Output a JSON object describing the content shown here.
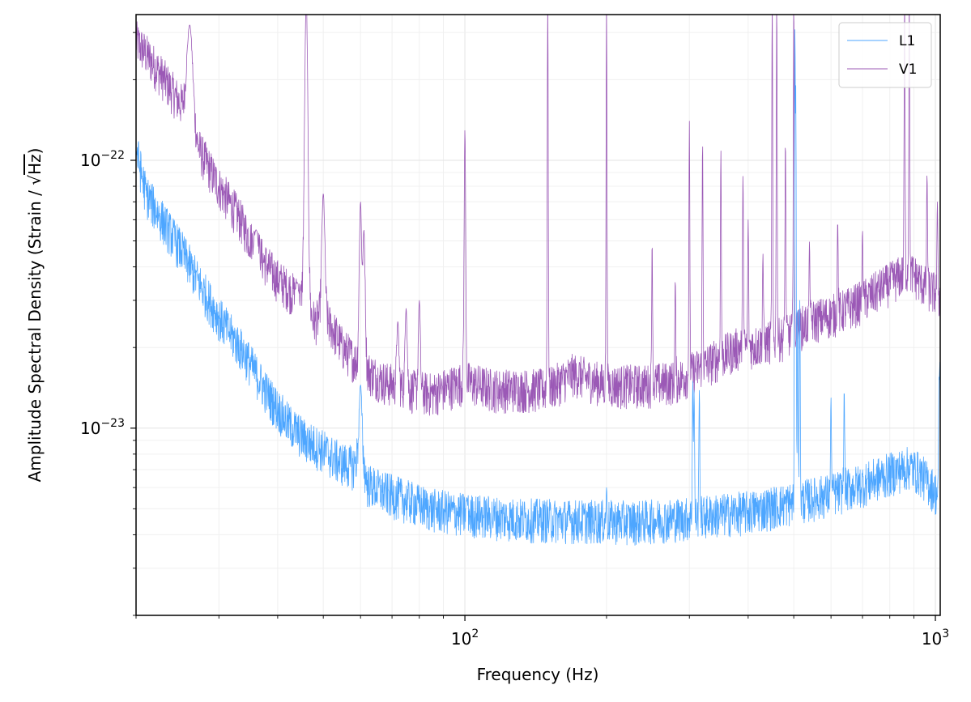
{
  "chart_data": {
    "type": "line",
    "xlabel": "Frequency (Hz)",
    "ylabel_prefix": "Amplitude Spectral Density (Strain / ",
    "ylabel_sqrt": "Hz",
    "ylabel_suffix": ")",
    "xscale": "log",
    "yscale": "log",
    "xlim": [
      20,
      1024
    ],
    "ylim": [
      2e-24,
      3.5e-22
    ],
    "grid": true,
    "legend_position": "top-right",
    "x_major_ticks": [
      {
        "value": 100,
        "base": "10",
        "exp": "2"
      },
      {
        "value": 1000,
        "base": "10",
        "exp": "3"
      }
    ],
    "y_major_ticks": [
      {
        "value": 1e-23,
        "base": "10",
        "exp": "−23"
      },
      {
        "value": 1e-22,
        "base": "10",
        "exp": "−22"
      }
    ],
    "series": [
      {
        "name": "L1",
        "color": "#4da6ff",
        "baseline": [
          [
            20,
            1.1e-22
          ],
          [
            21,
            7.5e-23
          ],
          [
            23,
            5.8e-23
          ],
          [
            25,
            4.6e-23
          ],
          [
            28,
            3.2e-23
          ],
          [
            30,
            2.6e-23
          ],
          [
            34,
            1.9e-23
          ],
          [
            38,
            1.35e-23
          ],
          [
            42,
            1.05e-23
          ],
          [
            46,
            9e-24
          ],
          [
            50,
            8.3e-24
          ],
          [
            54,
            7.5e-24
          ],
          [
            58,
            7.2e-24
          ],
          [
            60,
            8.5e-24
          ],
          [
            62,
            6.2e-24
          ],
          [
            67,
            5.8e-24
          ],
          [
            75,
            5.4e-24
          ],
          [
            85,
            5e-24
          ],
          [
            100,
            4.8e-24
          ],
          [
            130,
            4.6e-24
          ],
          [
            170,
            4.55e-24
          ],
          [
            230,
            4.5e-24
          ],
          [
            300,
            4.65e-24
          ],
          [
            400,
            4.9e-24
          ],
          [
            500,
            5.3e-24
          ],
          [
            600,
            5.7e-24
          ],
          [
            700,
            6.2e-24
          ],
          [
            800,
            6.8e-24
          ],
          [
            880,
            7.2e-24
          ],
          [
            930,
            6.8e-24
          ],
          [
            1000,
            5.8e-24
          ],
          [
            1024,
            5.4e-24
          ]
        ],
        "peaks": [
          [
            60,
            1.45e-23
          ],
          [
            101,
            5.5e-24
          ],
          [
            200,
            6e-24
          ],
          [
            305,
            1.5e-23
          ],
          [
            307,
            1.4e-23
          ],
          [
            315,
            1.4e-23
          ],
          [
            503,
            3.5e-22
          ],
          [
            505,
            1.9e-22
          ],
          [
            510,
            3e-23
          ],
          [
            515,
            3e-23
          ],
          [
            600,
            1.3e-23
          ],
          [
            640,
            1.4e-23
          ],
          [
            1018,
            1.5e-23
          ],
          [
            1022,
            1.8e-23
          ]
        ]
      },
      {
        "name": "V1",
        "color": "#9b59b6",
        "baseline": [
          [
            20,
            2.8e-22
          ],
          [
            21,
            2.5e-22
          ],
          [
            23,
            2e-22
          ],
          [
            25,
            1.6e-22
          ],
          [
            26,
            1.3e-22
          ],
          [
            28,
            1e-22
          ],
          [
            30,
            8e-23
          ],
          [
            33,
            6.2e-23
          ],
          [
            36,
            4.6e-23
          ],
          [
            40,
            3.6e-23
          ],
          [
            44,
            3.1e-23
          ],
          [
            48,
            2.5e-23
          ],
          [
            50,
            2.6e-23
          ],
          [
            52,
            2.4e-23
          ],
          [
            55,
            2e-23
          ],
          [
            60,
            1.7e-23
          ],
          [
            67,
            1.5e-23
          ],
          [
            75,
            1.4e-23
          ],
          [
            85,
            1.35e-23
          ],
          [
            100,
            1.5e-23
          ],
          [
            115,
            1.4e-23
          ],
          [
            130,
            1.4e-23
          ],
          [
            150,
            1.4e-23
          ],
          [
            170,
            1.6e-23
          ],
          [
            200,
            1.45e-23
          ],
          [
            240,
            1.45e-23
          ],
          [
            280,
            1.5e-23
          ],
          [
            320,
            1.7e-23
          ],
          [
            380,
            2e-23
          ],
          [
            420,
            2.05e-23
          ],
          [
            480,
            2.2e-23
          ],
          [
            540,
            2.5e-23
          ],
          [
            620,
            2.7e-23
          ],
          [
            700,
            3e-23
          ],
          [
            800,
            3.5e-23
          ],
          [
            880,
            3.9e-23
          ],
          [
            950,
            3.4e-23
          ],
          [
            1000,
            3.2e-23
          ],
          [
            1024,
            3.1e-23
          ]
        ],
        "peaks": [
          [
            26,
            3.2e-22
          ],
          [
            36,
            5.5e-23
          ],
          [
            44,
            3.5e-23
          ],
          [
            46,
            4e-22
          ],
          [
            50,
            7.5e-23
          ],
          [
            60,
            7e-23
          ],
          [
            61,
            5.5e-23
          ],
          [
            72,
            2.5e-23
          ],
          [
            75,
            2.8e-23
          ],
          [
            80,
            3e-23
          ],
          [
            100,
            1.3e-22
          ],
          [
            150,
            4e-22
          ],
          [
            200,
            4e-22
          ],
          [
            250,
            5e-23
          ],
          [
            280,
            3.6e-23
          ],
          [
            300,
            1.4e-22
          ],
          [
            320,
            1.2e-22
          ],
          [
            350,
            1.1e-22
          ],
          [
            390,
            9e-23
          ],
          [
            400,
            6e-23
          ],
          [
            430,
            4.5e-23
          ],
          [
            450,
            4e-22
          ],
          [
            460,
            4e-22
          ],
          [
            480,
            1.2e-22
          ],
          [
            500,
            4e-22
          ],
          [
            540,
            5e-23
          ],
          [
            620,
            6e-23
          ],
          [
            700,
            5.5e-23
          ],
          [
            780,
            3.5e-23
          ],
          [
            860,
            4e-22
          ],
          [
            880,
            4e-22
          ],
          [
            960,
            9e-23
          ],
          [
            1010,
            7e-23
          ]
        ]
      }
    ]
  }
}
